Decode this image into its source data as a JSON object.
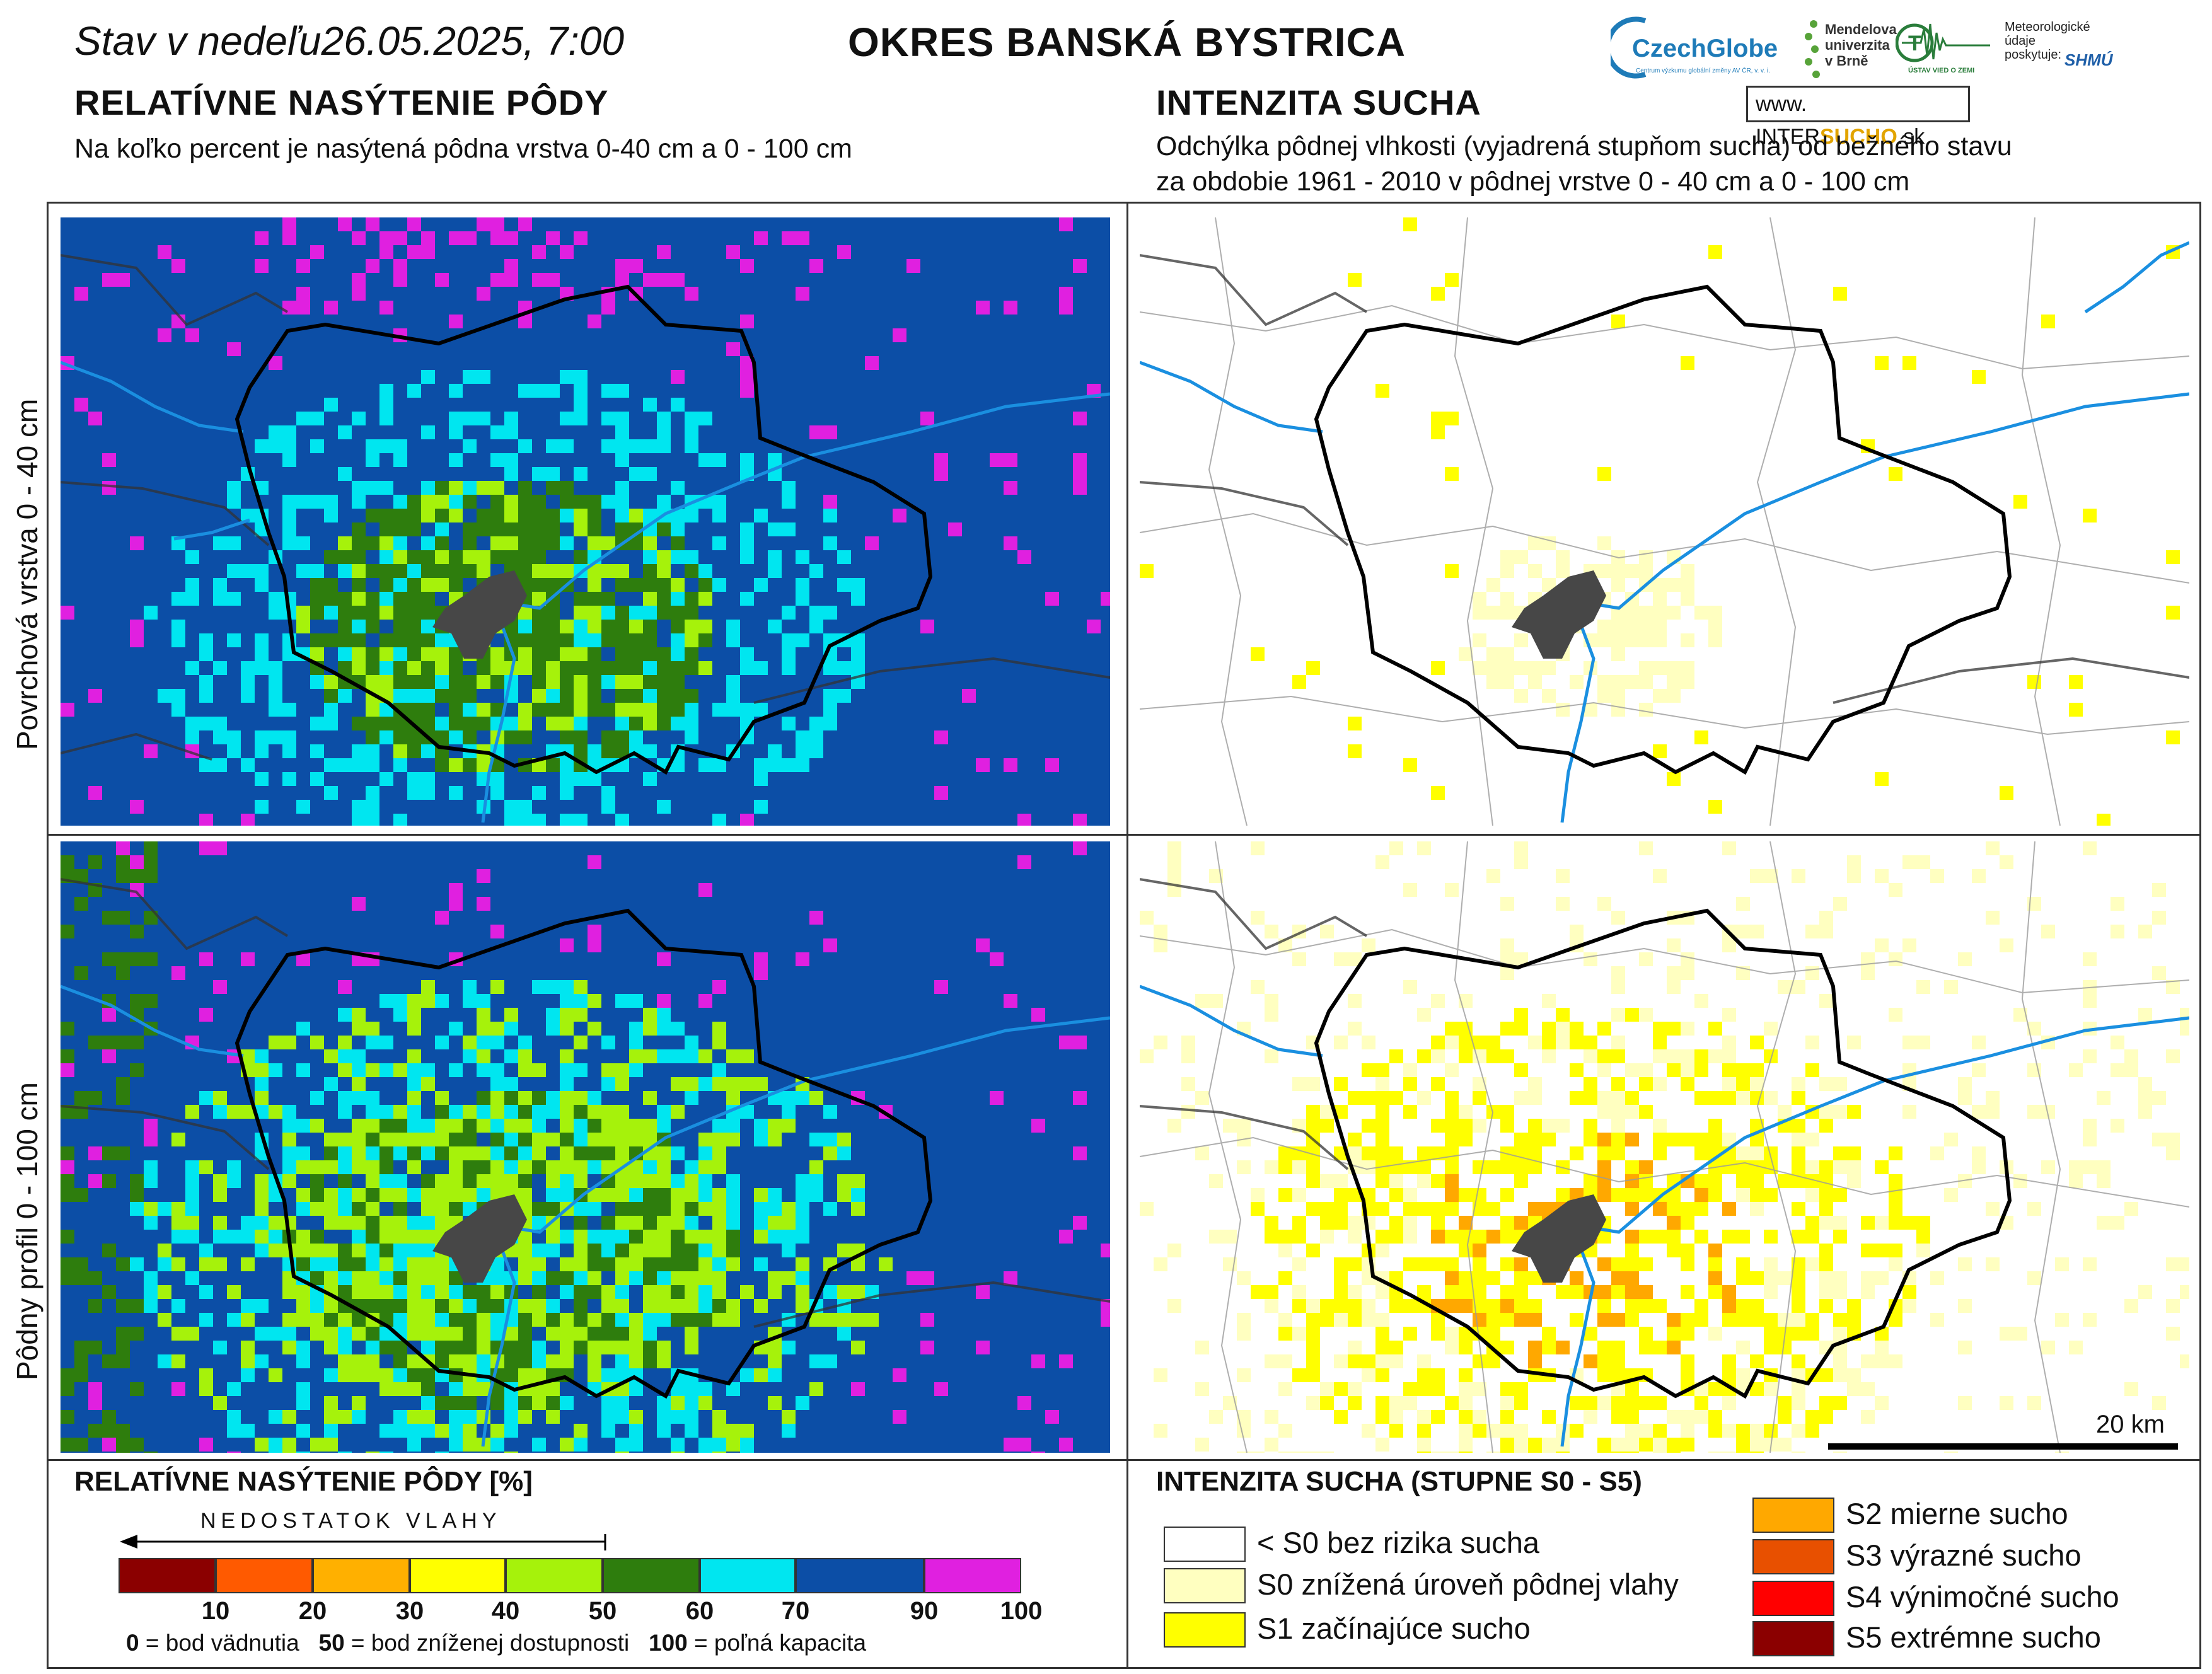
{
  "header": {
    "stav_label": "Stav v nedeľu",
    "datetime": "26.05.2025, 7:00",
    "okres": "OKRES BANSKÁ BYSTRICA"
  },
  "logos": {
    "czechglobe": "CzechGlobe",
    "czechglobe_sub": "Centrum výzkumu globální změny AV ČR, v. v. i.",
    "mendel": [
      "Mendelova",
      "univerzita",
      "v Brně"
    ],
    "uvz": "ÚSTAV VIED O ZEMI",
    "meteo": [
      "Meteorologické",
      "údaje",
      "poskytuje:"
    ],
    "shmu": "SHMÚ",
    "intersucho_prefix": "www. INTER",
    "intersucho_brand": "SUCHO",
    "intersucho_suffix": ".sk"
  },
  "left": {
    "title": "RELATÍVNE NASÝTENIE PÔDY",
    "subtitle": "Na koľko percent je nasýtená pôdna vrstva 0-40 cm a 0 - 100 cm"
  },
  "right": {
    "title": "INTENZITA SUCHA",
    "subtitle_line1": "Odchýlka pôdnej vlhkosti (vyjadrená stupňom sucha) od bežného stavu",
    "subtitle_line2": "za obdobie 1961 - 2010 v pôdnej vrstve 0 - 40 cm a 0 - 100 cm"
  },
  "rows": {
    "top": "Povrchová vrstva 0 - 40 cm",
    "bottom": "Pôdny profil 0 - 100 cm"
  },
  "scale": {
    "label": "20 km"
  },
  "legend_left": {
    "title": "RELATÍVNE NASÝTENIE PÔDY [%]",
    "arrow_label": "NEDOSTATOK VLAHY",
    "classes": [
      {
        "color": "#8b0000"
      },
      {
        "color": "#ff5a00"
      },
      {
        "color": "#ffb000"
      },
      {
        "color": "#ffff00"
      },
      {
        "color": "#a6f20b"
      },
      {
        "color": "#2e7d0d"
      },
      {
        "color": "#00e6f0"
      },
      {
        "color": "#0c4ea6"
      },
      {
        "color": "#e020e0"
      }
    ],
    "ticks": [
      "10",
      "20",
      "30",
      "40",
      "50",
      "60",
      "70",
      "90",
      "100"
    ],
    "foot_0": "0",
    "foot_0_text": " = bod vädnutia   ",
    "foot_50": "50",
    "foot_50_text": " = bod zníženej dostupnosti   ",
    "foot_100": "100",
    "foot_100_text": " = poľná kapacita"
  },
  "legend_right": {
    "title": "INTENZITA SUCHA (STUPNE S0 - S5)",
    "items": [
      {
        "label": "< S0 bez rizika sucha",
        "color": "#ffffff"
      },
      {
        "label": "S0 znížená úroveň pôdnej vlahy",
        "color": "#ffffc0"
      },
      {
        "label": "S1 začínajúce sucho",
        "color": "#ffff00"
      },
      {
        "label": "S2 mierne sucho",
        "color": "#ffa800"
      },
      {
        "label": "S3 výrazné sucho",
        "color": "#e85000"
      },
      {
        "label": "S4 výnimočné sucho",
        "color": "#ff0000"
      },
      {
        "label": "S5 extrémne sucho",
        "color": "#8b0000"
      }
    ]
  }
}
